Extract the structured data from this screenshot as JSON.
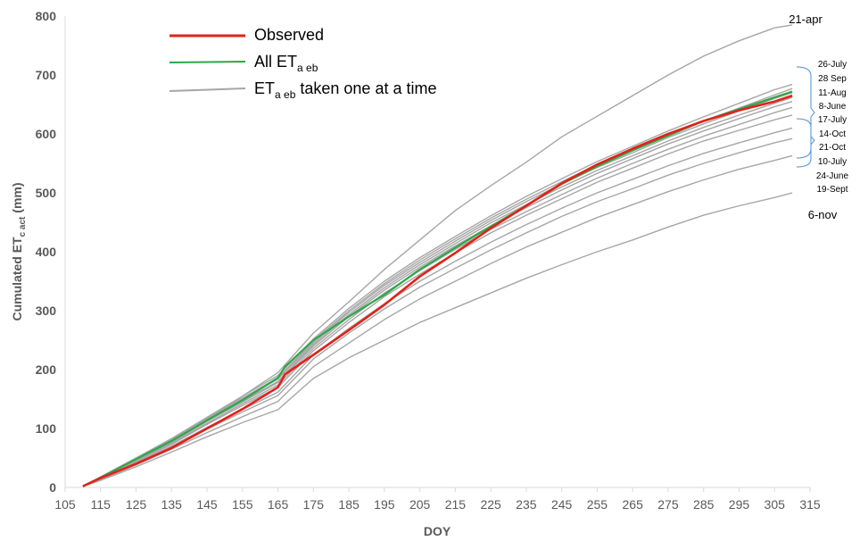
{
  "chart_data": {
    "type": "line",
    "xlabel": "DOY",
    "ylabel": "Cumulated ET",
    "ylabel_sub": "c act",
    "ylabel_unit": " (mm)",
    "xlim": [
      105,
      315
    ],
    "ylim": [
      0,
      800
    ],
    "xticks": [
      105,
      115,
      125,
      135,
      145,
      155,
      165,
      175,
      185,
      195,
      205,
      215,
      225,
      235,
      245,
      255,
      265,
      275,
      285,
      295,
      305,
      315
    ],
    "yticks": [
      0,
      100,
      200,
      300,
      400,
      500,
      600,
      700,
      800
    ],
    "legend": {
      "placement": "top-left",
      "items": [
        {
          "text": "Observed",
          "sub": "",
          "after": "",
          "color": "#e32119"
        },
        {
          "text": "All ET",
          "sub": "a eb",
          "after": "",
          "color": "#2ca84a"
        },
        {
          "text": "ET",
          "sub": "a eb",
          "after": " taken one at a time",
          "color": "#a6a6a6"
        }
      ]
    },
    "end_labels": [
      "21-apr",
      "26-July",
      "28 Sep",
      "11-Aug",
      "8-June",
      "17-July",
      "14-Oct",
      "21-Oct",
      "10-July",
      "24-June",
      "19-Sept",
      "6-nov"
    ],
    "series": [
      {
        "role": "gray",
        "end": "21-apr",
        "x": [
          110,
          115,
          125,
          135,
          145,
          155,
          165,
          175,
          185,
          195,
          205,
          215,
          225,
          235,
          245,
          255,
          265,
          275,
          285,
          295,
          305,
          310
        ],
        "y": [
          2,
          15,
          45,
          75,
          115,
          155,
          195,
          262,
          315,
          370,
          420,
          470,
          512,
          552,
          595,
          630,
          665,
          700,
          732,
          758,
          780,
          785
        ]
      },
      {
        "role": "gray",
        "end": "6-nov",
        "x": [
          110,
          115,
          125,
          135,
          145,
          155,
          165,
          175,
          185,
          195,
          205,
          215,
          225,
          235,
          245,
          255,
          265,
          275,
          285,
          295,
          305,
          310
        ],
        "y": [
          2,
          12,
          35,
          60,
          86,
          110,
          132,
          185,
          220,
          250,
          280,
          305,
          330,
          355,
          378,
          400,
          420,
          442,
          462,
          478,
          492,
          500
        ]
      },
      {
        "role": "gray",
        "end": "19-Sept",
        "x": [
          110,
          115,
          125,
          135,
          145,
          155,
          165,
          175,
          185,
          195,
          205,
          215,
          225,
          235,
          245,
          255,
          265,
          275,
          285,
          295,
          305,
          310
        ],
        "y": [
          2,
          13,
          38,
          65,
          93,
          120,
          146,
          205,
          245,
          285,
          320,
          350,
          380,
          408,
          433,
          458,
          480,
          502,
          522,
          540,
          555,
          563
        ]
      },
      {
        "role": "gray",
        "end": "24-June",
        "x": [
          110,
          115,
          125,
          135,
          145,
          155,
          165,
          175,
          185,
          195,
          205,
          215,
          225,
          235,
          245,
          255,
          265,
          275,
          285,
          295,
          305,
          310
        ],
        "y": [
          2,
          14,
          40,
          68,
          99,
          128,
          156,
          218,
          262,
          303,
          340,
          372,
          403,
          432,
          460,
          485,
          507,
          530,
          550,
          568,
          585,
          592
        ]
      },
      {
        "role": "gray",
        "end": "10-July",
        "x": [
          110,
          115,
          125,
          135,
          145,
          155,
          165,
          175,
          185,
          195,
          205,
          215,
          225,
          235,
          245,
          255,
          265,
          275,
          285,
          295,
          305,
          310
        ],
        "y": [
          2,
          14,
          42,
          70,
          102,
          132,
          162,
          225,
          270,
          312,
          350,
          384,
          416,
          446,
          474,
          500,
          523,
          546,
          567,
          585,
          602,
          610
        ]
      },
      {
        "role": "gray",
        "end": "21-Oct",
        "x": [
          110,
          115,
          125,
          135,
          145,
          155,
          165,
          175,
          185,
          195,
          205,
          215,
          225,
          235,
          245,
          255,
          265,
          275,
          285,
          295,
          305,
          310
        ],
        "y": [
          2,
          15,
          44,
          73,
          107,
          139,
          170,
          232,
          280,
          324,
          362,
          398,
          432,
          462,
          490,
          518,
          542,
          566,
          588,
          606,
          624,
          632
        ]
      },
      {
        "role": "gray",
        "end": "14-Oct",
        "x": [
          110,
          115,
          125,
          135,
          145,
          155,
          165,
          175,
          185,
          195,
          205,
          215,
          225,
          235,
          245,
          255,
          265,
          275,
          285,
          295,
          305,
          310
        ],
        "y": [
          2,
          15,
          45,
          75,
          109,
          142,
          174,
          236,
          285,
          330,
          368,
          404,
          438,
          468,
          497,
          525,
          550,
          574,
          596,
          616,
          636,
          645
        ]
      },
      {
        "role": "gray",
        "end": "17-July",
        "x": [
          110,
          115,
          125,
          135,
          145,
          155,
          165,
          175,
          185,
          195,
          205,
          215,
          225,
          235,
          245,
          255,
          265,
          275,
          285,
          295,
          305,
          310
        ],
        "y": [
          2,
          16,
          46,
          77,
          112,
          145,
          178,
          240,
          290,
          335,
          374,
          410,
          444,
          475,
          505,
          533,
          558,
          583,
          605,
          626,
          646,
          655
        ]
      },
      {
        "role": "gray",
        "end": "8-June",
        "x": [
          110,
          115,
          125,
          135,
          145,
          155,
          165,
          175,
          185,
          195,
          205,
          215,
          225,
          235,
          245,
          255,
          265,
          275,
          285,
          295,
          305,
          310
        ],
        "y": [
          2,
          16,
          47,
          78,
          113,
          147,
          180,
          243,
          293,
          339,
          378,
          414,
          449,
          480,
          510,
          538,
          563,
          588,
          611,
          632,
          652,
          662
        ]
      },
      {
        "role": "gray",
        "end": "11-Aug",
        "x": [
          110,
          115,
          125,
          135,
          145,
          155,
          165,
          175,
          185,
          195,
          205,
          215,
          225,
          235,
          245,
          255,
          265,
          275,
          285,
          295,
          305,
          310
        ],
        "y": [
          2,
          17,
          48,
          80,
          115,
          150,
          184,
          246,
          297,
          343,
          382,
          418,
          453,
          485,
          515,
          543,
          568,
          594,
          617,
          639,
          660,
          670
        ]
      },
      {
        "role": "gray",
        "end": "28 Sep",
        "x": [
          110,
          115,
          125,
          135,
          145,
          155,
          165,
          175,
          185,
          195,
          205,
          215,
          225,
          235,
          245,
          255,
          265,
          275,
          285,
          295,
          305,
          310
        ],
        "y": [
          2,
          17,
          49,
          81,
          117,
          152,
          186,
          249,
          300,
          346,
          386,
          422,
          457,
          489,
          519,
          548,
          573,
          599,
          622,
          644,
          666,
          677
        ]
      },
      {
        "role": "gray",
        "end": "26-July",
        "x": [
          110,
          115,
          125,
          135,
          145,
          155,
          165,
          175,
          185,
          195,
          205,
          215,
          225,
          235,
          245,
          255,
          265,
          275,
          285,
          295,
          305,
          310
        ],
        "y": [
          2,
          18,
          50,
          83,
          119,
          155,
          190,
          252,
          304,
          350,
          390,
          426,
          461,
          494,
          524,
          553,
          579,
          605,
          629,
          652,
          675,
          684
        ]
      },
      {
        "role": "green",
        "end": "",
        "x": [
          110,
          115,
          125,
          135,
          145,
          155,
          165,
          167,
          175,
          185,
          195,
          205,
          215,
          225,
          235,
          245,
          255,
          265,
          275,
          285,
          295,
          305,
          310
        ],
        "y": [
          2,
          17,
          48,
          79,
          114,
          148,
          186,
          205,
          250,
          290,
          327,
          370,
          407,
          443,
          478,
          515,
          545,
          572,
          597,
          622,
          642,
          662,
          672
        ]
      },
      {
        "role": "red",
        "end": "",
        "x": [
          110,
          115,
          125,
          135,
          145,
          155,
          165,
          167,
          175,
          185,
          195,
          205,
          215,
          225,
          235,
          245,
          255,
          265,
          275,
          285,
          295,
          305,
          310
        ],
        "y": [
          2,
          16,
          40,
          67,
          100,
          133,
          170,
          192,
          225,
          267,
          310,
          358,
          398,
          440,
          478,
          516,
          548,
          575,
          600,
          622,
          640,
          655,
          665
        ]
      }
    ]
  }
}
